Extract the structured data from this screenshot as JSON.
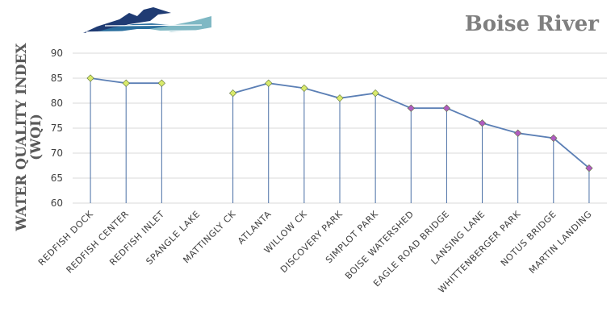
{
  "chart_data": {
    "type": "line",
    "title": "Boise River",
    "ylabel": "WATER QUALITY INDEX (WQI)",
    "ylabel_lines": [
      "WATER QUALITY INDEX",
      "(WQI)"
    ],
    "xlabel": "",
    "ylim": [
      60,
      90
    ],
    "yticks": [
      60,
      65,
      70,
      75,
      80,
      85,
      90
    ],
    "grid": true,
    "legend": "none",
    "categories": [
      "REDFISH DOCK",
      "REDFISH CENTER",
      "REDFISH INLET",
      "SPANGLE LAKE",
      "MATTINGLY CK",
      "ATLANTA",
      "WILLOW CK",
      "DISCOVERY PARK",
      "SIMPLOT PARK",
      "BOISE WATERSHED",
      "EAGLE ROAD BRIDGE",
      "LANSING LANE",
      "WHITTENBERGER PARK",
      "NOTUS BRIDGE",
      "MARTIN LANDING"
    ],
    "series": [
      {
        "values": [
          85,
          84,
          84,
          null,
          82,
          84,
          83,
          81,
          82,
          79,
          79,
          76,
          74,
          73,
          67
        ]
      }
    ],
    "marker_colors": [
      "#d9ea6b",
      "#d9ea6b",
      "#d9ea6b",
      null,
      "#d9ea6b",
      "#d9ea6b",
      "#d9ea6b",
      "#d9ea6b",
      "#d9ea6b",
      "#b05bc2",
      "#b05bc2",
      "#b05bc2",
      "#b05bc2",
      "#b05bc2",
      "#b05bc2"
    ],
    "line_color": "#5b7fb5"
  },
  "logo": {
    "name": "swimmer-logo-icon",
    "colors": [
      "#1f3b73",
      "#2b6f9e",
      "#7fb8c4"
    ]
  }
}
